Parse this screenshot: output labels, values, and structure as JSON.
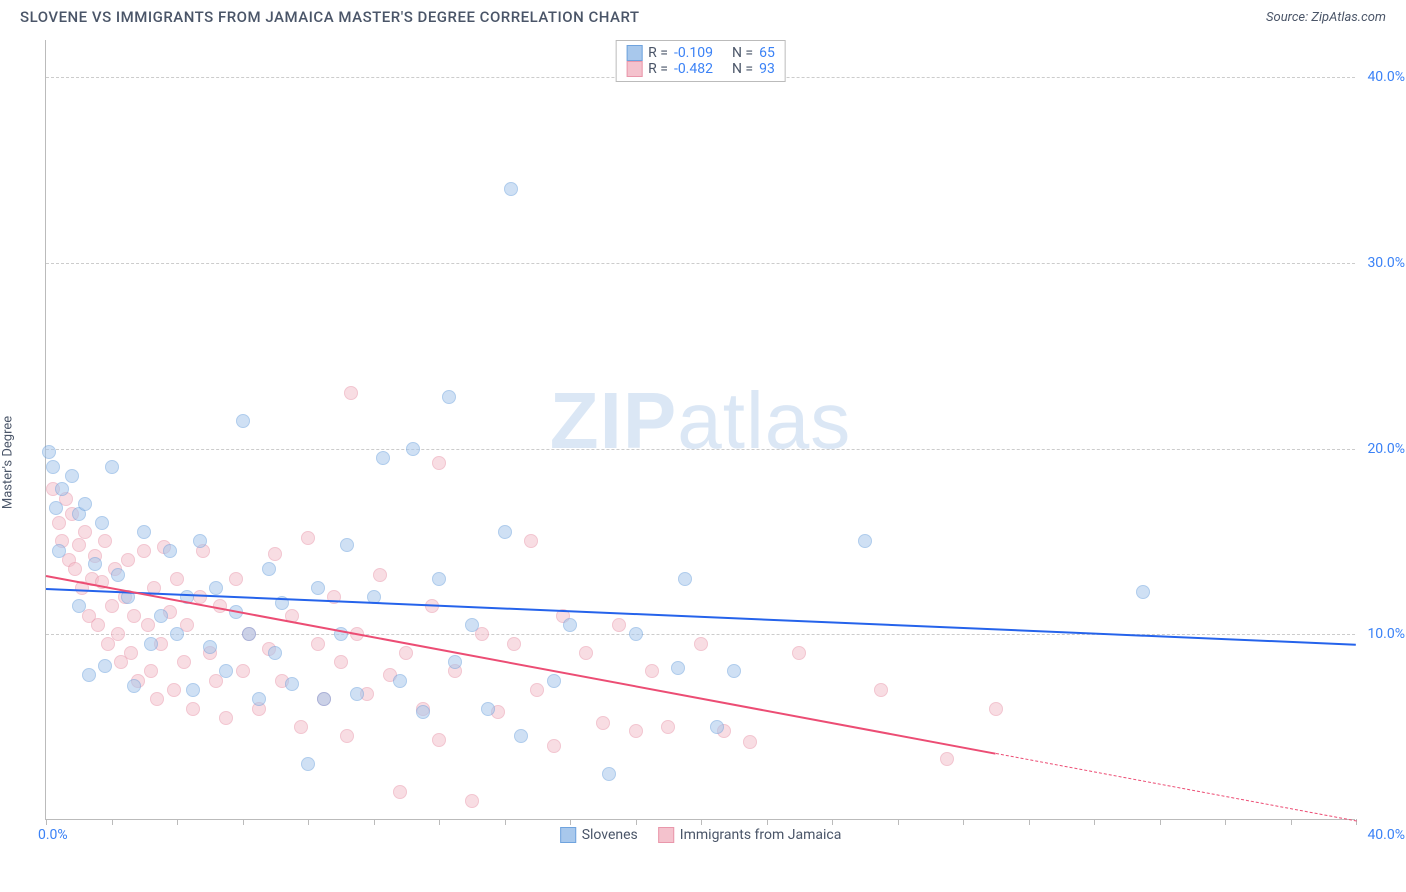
{
  "header": {
    "title": "SLOVENE VS IMMIGRANTS FROM JAMAICA MASTER'S DEGREE CORRELATION CHART",
    "source": "Source: ZipAtlas.com"
  },
  "ylabel": "Master's Degree",
  "watermark": {
    "bold": "ZIP",
    "rest": "atlas"
  },
  "chart": {
    "type": "scatter",
    "background_color": "#ffffff",
    "grid_color": "#cccccc",
    "axis_color": "#bbbbbb",
    "xlim": [
      0,
      40
    ],
    "ylim": [
      0,
      42
    ],
    "x_axis_ticks": [
      0,
      2,
      4,
      6,
      8,
      10,
      12,
      14,
      16,
      18,
      20,
      22,
      24,
      26,
      28,
      30,
      32,
      34,
      36,
      38,
      40
    ],
    "x_axis_labels": [
      {
        "v": 0,
        "t": "0.0%"
      },
      {
        "v": 40,
        "t": "40.0%"
      }
    ],
    "y_axis_gridlines": [
      10,
      20,
      30,
      40
    ],
    "y_axis_labels": [
      {
        "v": 10,
        "t": "10.0%"
      },
      {
        "v": 20,
        "t": "20.0%"
      },
      {
        "v": 30,
        "t": "30.0%"
      },
      {
        "v": 40,
        "t": "40.0%"
      }
    ],
    "tick_label_color": "#3b82f6",
    "tick_label_fontsize": 14,
    "marker_radius": 7,
    "marker_opacity": 0.55,
    "series": [
      {
        "name": "Slovenes",
        "color_fill": "#a8c8ec",
        "color_stroke": "#6fa3de",
        "R": "-0.109",
        "N": "65",
        "trend": {
          "x1": 0,
          "y1": 12.5,
          "x2": 40,
          "y2": 9.5,
          "color": "#2563eb",
          "dash_from_x": 40
        },
        "points": [
          [
            0.1,
            19.8
          ],
          [
            0.2,
            19.0
          ],
          [
            0.3,
            16.8
          ],
          [
            0.4,
            14.5
          ],
          [
            0.5,
            17.8
          ],
          [
            0.8,
            18.5
          ],
          [
            1.0,
            16.5
          ],
          [
            1.0,
            11.5
          ],
          [
            1.2,
            17.0
          ],
          [
            1.3,
            7.8
          ],
          [
            1.5,
            13.8
          ],
          [
            1.7,
            16.0
          ],
          [
            1.8,
            8.3
          ],
          [
            2.0,
            19.0
          ],
          [
            2.2,
            13.2
          ],
          [
            2.5,
            12.0
          ],
          [
            2.7,
            7.2
          ],
          [
            3.0,
            15.5
          ],
          [
            3.2,
            9.5
          ],
          [
            3.5,
            11.0
          ],
          [
            3.8,
            14.5
          ],
          [
            4.0,
            10.0
          ],
          [
            4.3,
            12.0
          ],
          [
            4.5,
            7.0
          ],
          [
            4.7,
            15.0
          ],
          [
            5.0,
            9.3
          ],
          [
            5.2,
            12.5
          ],
          [
            5.5,
            8.0
          ],
          [
            5.8,
            11.2
          ],
          [
            6.0,
            21.5
          ],
          [
            6.2,
            10.0
          ],
          [
            6.5,
            6.5
          ],
          [
            6.8,
            13.5
          ],
          [
            7.0,
            9.0
          ],
          [
            7.2,
            11.7
          ],
          [
            7.5,
            7.3
          ],
          [
            8.0,
            3.0
          ],
          [
            8.3,
            12.5
          ],
          [
            8.5,
            6.5
          ],
          [
            9.0,
            10.0
          ],
          [
            9.2,
            14.8
          ],
          [
            9.5,
            6.8
          ],
          [
            10.0,
            12.0
          ],
          [
            10.3,
            19.5
          ],
          [
            10.8,
            7.5
          ],
          [
            11.2,
            20.0
          ],
          [
            11.5,
            5.8
          ],
          [
            12.0,
            13.0
          ],
          [
            12.3,
            22.8
          ],
          [
            12.5,
            8.5
          ],
          [
            13.0,
            10.5
          ],
          [
            13.5,
            6.0
          ],
          [
            14.0,
            15.5
          ],
          [
            14.2,
            34.0
          ],
          [
            14.5,
            4.5
          ],
          [
            15.5,
            7.5
          ],
          [
            16.0,
            10.5
          ],
          [
            17.2,
            2.5
          ],
          [
            18.0,
            10.0
          ],
          [
            19.3,
            8.2
          ],
          [
            19.5,
            13.0
          ],
          [
            20.5,
            5.0
          ],
          [
            21.0,
            8.0
          ],
          [
            25.0,
            15.0
          ],
          [
            33.5,
            12.3
          ]
        ]
      },
      {
        "name": "Immigrants from Jamaica",
        "color_fill": "#f4c2cd",
        "color_stroke": "#e997ab",
        "R": "-0.482",
        "N": "93",
        "trend": {
          "x1": 0,
          "y1": 13.2,
          "x2": 40,
          "y2": 0.0,
          "color": "#ec4d74",
          "dash_from_x": 29
        },
        "points": [
          [
            0.2,
            17.8
          ],
          [
            0.4,
            16.0
          ],
          [
            0.5,
            15.0
          ],
          [
            0.6,
            17.3
          ],
          [
            0.7,
            14.0
          ],
          [
            0.8,
            16.5
          ],
          [
            0.9,
            13.5
          ],
          [
            1.0,
            14.8
          ],
          [
            1.1,
            12.5
          ],
          [
            1.2,
            15.5
          ],
          [
            1.3,
            11.0
          ],
          [
            1.4,
            13.0
          ],
          [
            1.5,
            14.2
          ],
          [
            1.6,
            10.5
          ],
          [
            1.7,
            12.8
          ],
          [
            1.8,
            15.0
          ],
          [
            1.9,
            9.5
          ],
          [
            2.0,
            11.5
          ],
          [
            2.1,
            13.5
          ],
          [
            2.2,
            10.0
          ],
          [
            2.3,
            8.5
          ],
          [
            2.4,
            12.0
          ],
          [
            2.5,
            14.0
          ],
          [
            2.6,
            9.0
          ],
          [
            2.7,
            11.0
          ],
          [
            2.8,
            7.5
          ],
          [
            3.0,
            14.5
          ],
          [
            3.1,
            10.5
          ],
          [
            3.2,
            8.0
          ],
          [
            3.3,
            12.5
          ],
          [
            3.4,
            6.5
          ],
          [
            3.5,
            9.5
          ],
          [
            3.6,
            14.7
          ],
          [
            3.8,
            11.2
          ],
          [
            3.9,
            7.0
          ],
          [
            4.0,
            13.0
          ],
          [
            4.2,
            8.5
          ],
          [
            4.3,
            10.5
          ],
          [
            4.5,
            6.0
          ],
          [
            4.7,
            12.0
          ],
          [
            4.8,
            14.5
          ],
          [
            5.0,
            9.0
          ],
          [
            5.2,
            7.5
          ],
          [
            5.3,
            11.5
          ],
          [
            5.5,
            5.5
          ],
          [
            5.8,
            13.0
          ],
          [
            6.0,
            8.0
          ],
          [
            6.2,
            10.0
          ],
          [
            6.5,
            6.0
          ],
          [
            6.8,
            9.2
          ],
          [
            7.0,
            14.3
          ],
          [
            7.2,
            7.5
          ],
          [
            7.5,
            11.0
          ],
          [
            7.8,
            5.0
          ],
          [
            8.0,
            15.2
          ],
          [
            8.3,
            9.5
          ],
          [
            8.5,
            6.5
          ],
          [
            8.8,
            12.0
          ],
          [
            9.0,
            8.5
          ],
          [
            9.2,
            4.5
          ],
          [
            9.3,
            23.0
          ],
          [
            9.5,
            10.0
          ],
          [
            9.8,
            6.8
          ],
          [
            10.2,
            13.2
          ],
          [
            10.5,
            7.8
          ],
          [
            10.8,
            1.5
          ],
          [
            11.0,
            9.0
          ],
          [
            11.5,
            6.0
          ],
          [
            11.8,
            11.5
          ],
          [
            12.0,
            4.3
          ],
          [
            12.0,
            19.2
          ],
          [
            12.5,
            8.0
          ],
          [
            13.0,
            1.0
          ],
          [
            13.3,
            10.0
          ],
          [
            13.8,
            5.8
          ],
          [
            14.3,
            9.5
          ],
          [
            14.8,
            15.0
          ],
          [
            15.0,
            7.0
          ],
          [
            15.5,
            4.0
          ],
          [
            15.8,
            11.0
          ],
          [
            16.5,
            9.0
          ],
          [
            17.0,
            5.2
          ],
          [
            17.5,
            10.5
          ],
          [
            18.0,
            4.8
          ],
          [
            18.5,
            8.0
          ],
          [
            19.0,
            5.0
          ],
          [
            20.0,
            9.5
          ],
          [
            20.7,
            4.8
          ],
          [
            21.5,
            4.2
          ],
          [
            23.0,
            9.0
          ],
          [
            25.5,
            7.0
          ],
          [
            27.5,
            3.3
          ],
          [
            29.0,
            6.0
          ]
        ]
      }
    ],
    "legend_top": {
      "r_label": "R =",
      "n_label": "N ="
    },
    "legend_bottom_labels": [
      "Slovenes",
      "Immigrants from Jamaica"
    ]
  }
}
